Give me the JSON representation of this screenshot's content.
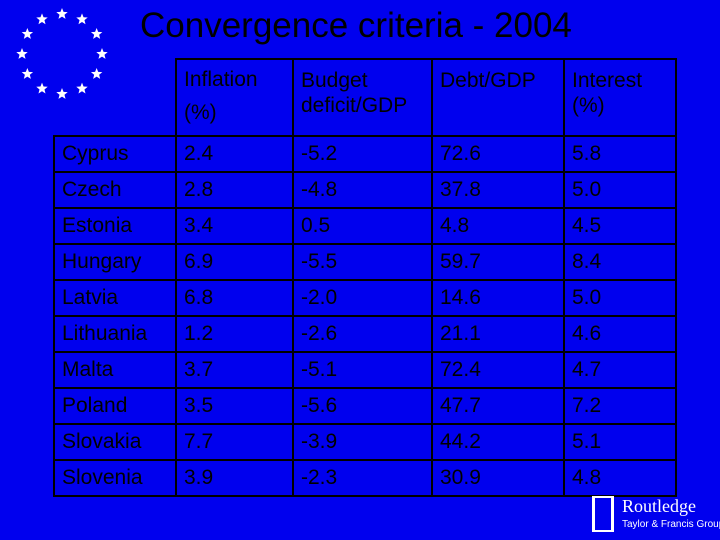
{
  "title": "Convergence criteria - 2004",
  "table": {
    "headers": [
      {
        "line1": "",
        "line2": ""
      },
      {
        "line1": "Inflation",
        "line2": "(%)"
      },
      {
        "line1": "Budget",
        "line2": "deficit/GDP"
      },
      {
        "line1": "Debt/GDP",
        "line2": ""
      },
      {
        "line1": "Interest",
        "line2": "(%)"
      }
    ],
    "rows": [
      [
        "Cyprus",
        "2.4",
        "-5.2",
        "72.6",
        "5.8"
      ],
      [
        "Czech",
        "2.8",
        "-4.8",
        "37.8",
        "5.0"
      ],
      [
        "Estonia",
        "3.4",
        "0.5",
        "4.8",
        "4.5"
      ],
      [
        "Hungary",
        "6.9",
        "-5.5",
        "59.7",
        "8.4"
      ],
      [
        "Latvia",
        "6.8",
        "-2.0",
        "14.6",
        "5.0"
      ],
      [
        "Lithuania",
        "1.2",
        "-2.6",
        "21.1",
        "4.6"
      ],
      [
        "Malta",
        "3.7",
        "-5.1",
        "72.4",
        "4.7"
      ],
      [
        "Poland",
        "3.5",
        "-5.6",
        "47.7",
        "7.2"
      ],
      [
        "Slovakia",
        "7.7",
        "-3.9",
        "44.2",
        "5.1"
      ],
      [
        "Slovenia",
        "3.9",
        "-2.3",
        "30.9",
        "4.8"
      ]
    ]
  },
  "logo": {
    "name": "Routledge",
    "sub": "Taylor & Francis Group",
    "mark_text": "ROUTLEDGE"
  },
  "icons": [
    "eu-stars-icon",
    "routledge-logo-icon"
  ],
  "colors": {
    "background": "#0000ee",
    "stars": "#ffffff",
    "text": "#000000"
  }
}
